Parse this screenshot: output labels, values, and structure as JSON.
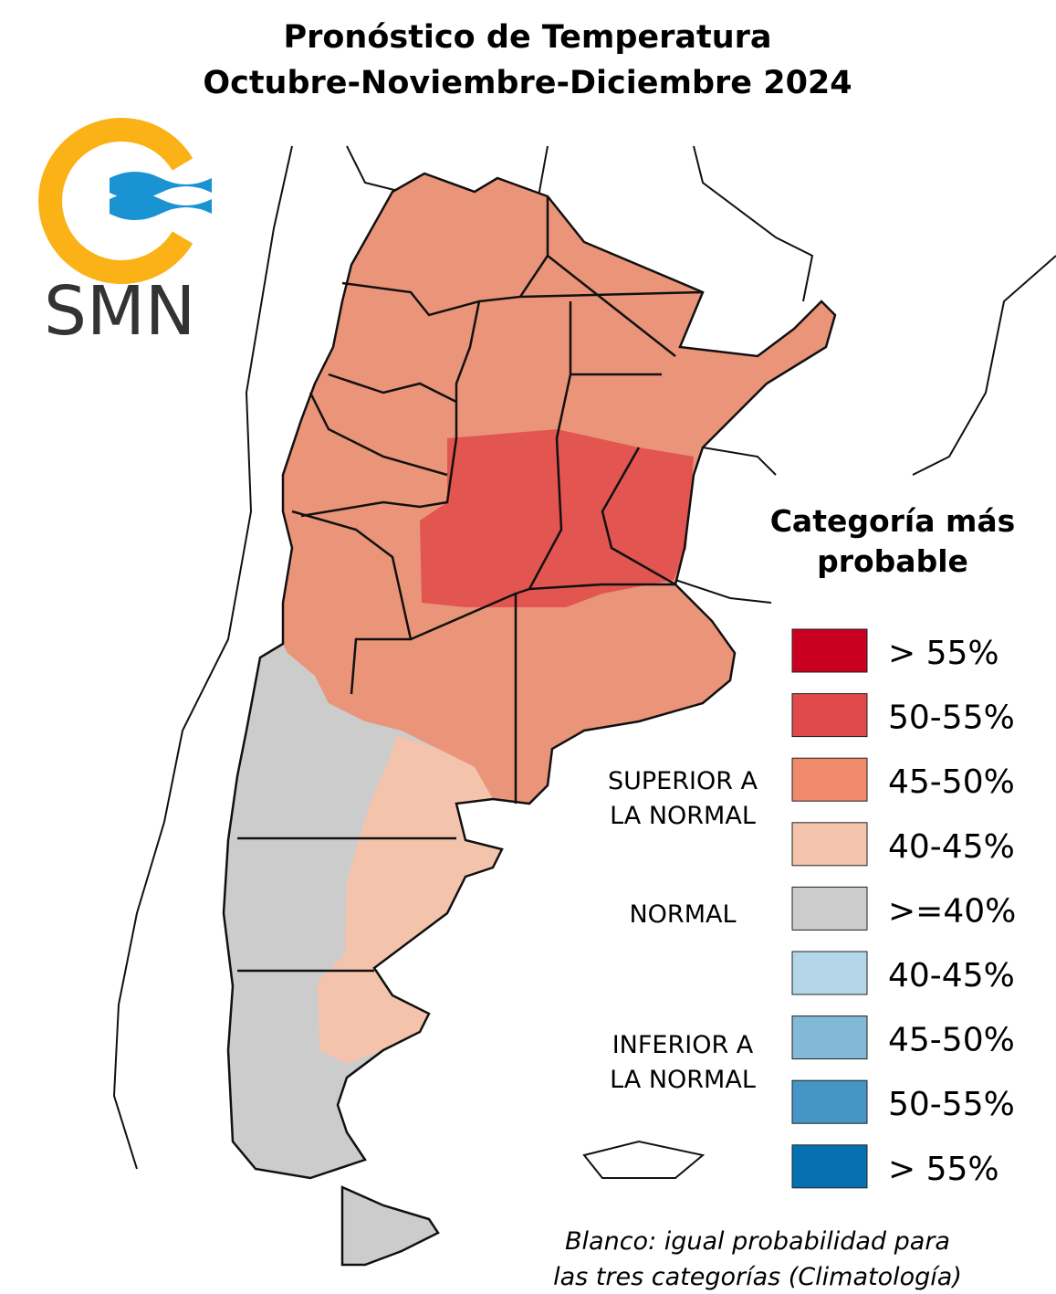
{
  "title": [
    "Pronóstico de Temperatura",
    "Octubre-Noviembre-Diciembre 2024"
  ],
  "logo": "SMN",
  "legend": {
    "title": [
      "Categoría más",
      "probable"
    ],
    "items": [
      {
        "label": "> 55%",
        "color": "#ca0020"
      },
      {
        "label": "50-55%",
        "color": "#e04a4a"
      },
      {
        "label": "45-50%",
        "color": "#ef8a6a"
      },
      {
        "label": "40-45%",
        "color": "#f4c3ab"
      },
      {
        "label": ">=40%",
        "color": "#cccccc"
      },
      {
        "label": "40-45%",
        "color": "#b4d6e8"
      },
      {
        "label": "45-50%",
        "color": "#82b8d8"
      },
      {
        "label": "50-55%",
        "color": "#4596c6"
      },
      {
        "label": "> 55%",
        "color": "#0571b0"
      }
    ],
    "groups": [
      {
        "label": [
          "SUPERIOR A",
          "LA NORMAL"
        ]
      },
      {
        "label": [
          "NORMAL"
        ]
      },
      {
        "label": [
          "INFERIOR A",
          "LA NORMAL"
        ]
      }
    ]
  },
  "note": [
    "Blanco: igual probabilidad para",
    "las tres categorías (Climatología)"
  ]
}
